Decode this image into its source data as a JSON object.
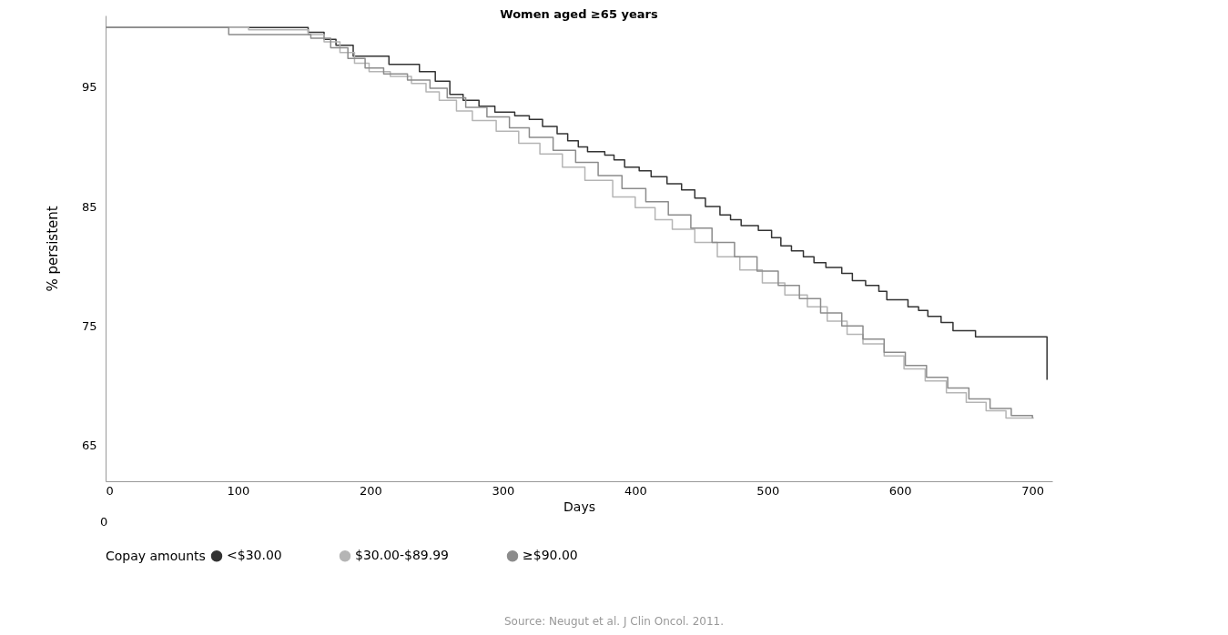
{
  "chart_data": {
    "type": "step",
    "title": "Women aged ≥65 years",
    "xlabel": "Days",
    "ylabel": "% persistent",
    "legend_title": "Copay amounts",
    "legend": "bottom",
    "grid": false,
    "xlim": [
      0,
      715
    ],
    "xticks": [
      0,
      100,
      200,
      300,
      400,
      500,
      600,
      700
    ],
    "ylim": [
      62,
      101
    ],
    "yticks": [
      65,
      75,
      85,
      95
    ],
    "annotations": [
      "0",
      "Source: Neugut et al. J Clin Oncol. 2011."
    ],
    "series": [
      {
        "name": "<$30.00",
        "color": "#333333",
        "x": [
          0,
          153,
          165,
          174,
          187,
          214,
          237,
          249,
          260,
          270,
          282,
          294,
          309,
          320,
          330,
          341,
          349,
          357,
          364,
          377,
          384,
          392,
          403,
          412,
          424,
          435,
          445,
          453,
          464,
          472,
          480,
          493,
          503,
          510,
          518,
          527,
          535,
          544,
          556,
          564,
          574,
          584,
          590,
          606,
          614,
          621,
          631,
          640,
          657,
          690,
          711
        ],
        "values": [
          100,
          99.6,
          99.0,
          98.5,
          97.6,
          96.9,
          96.3,
          95.5,
          94.4,
          93.9,
          93.4,
          92.9,
          92.6,
          92.3,
          91.7,
          91.1,
          90.5,
          90.0,
          89.6,
          89.3,
          88.9,
          88.3,
          88.0,
          87.5,
          86.9,
          86.4,
          85.7,
          85.0,
          84.3,
          83.9,
          83.4,
          83.0,
          82.4,
          81.7,
          81.3,
          80.8,
          80.3,
          79.9,
          79.4,
          78.8,
          78.4,
          77.9,
          77.2,
          76.6,
          76.3,
          75.8,
          75.3,
          74.6,
          74.1,
          74.1,
          70.5
        ]
      },
      {
        "name": "$30.00-$89.99",
        "color": "#b5b5b5",
        "x": [
          0,
          108,
          153,
          165,
          177,
          188,
          199,
          215,
          231,
          242,
          252,
          265,
          277,
          295,
          312,
          328,
          345,
          362,
          383,
          400,
          415,
          428,
          445,
          462,
          479,
          496,
          513,
          530,
          545,
          560,
          572,
          588,
          603,
          619,
          635,
          650,
          665,
          680,
          701
        ],
        "values": [
          100,
          99.8,
          99.4,
          98.8,
          97.9,
          97.0,
          96.3,
          95.9,
          95.3,
          94.6,
          93.9,
          93.0,
          92.2,
          91.3,
          90.3,
          89.4,
          88.3,
          87.2,
          85.8,
          84.9,
          83.9,
          83.1,
          82.0,
          80.8,
          79.7,
          78.6,
          77.6,
          76.6,
          75.4,
          74.3,
          73.5,
          72.5,
          71.4,
          70.4,
          69.4,
          68.6,
          67.9,
          67.3,
          67.3
        ]
      },
      {
        "name": "≥$90.00",
        "color": "#8c8c8c",
        "x": [
          0,
          93,
          155,
          170,
          183,
          196,
          210,
          228,
          245,
          258,
          272,
          288,
          305,
          320,
          338,
          355,
          372,
          390,
          408,
          425,
          442,
          458,
          475,
          492,
          508,
          524,
          540,
          556,
          572,
          588,
          604,
          620,
          636,
          652,
          668,
          684,
          700
        ],
        "values": [
          100,
          99.4,
          99.1,
          98.3,
          97.4,
          96.6,
          96.1,
          95.6,
          94.9,
          94.1,
          93.3,
          92.5,
          91.6,
          90.8,
          89.7,
          88.7,
          87.6,
          86.5,
          85.4,
          84.3,
          83.2,
          82.0,
          80.8,
          79.6,
          78.4,
          77.3,
          76.1,
          75.0,
          73.9,
          72.8,
          71.7,
          70.7,
          69.8,
          68.9,
          68.1,
          67.5,
          67.3
        ]
      }
    ]
  }
}
